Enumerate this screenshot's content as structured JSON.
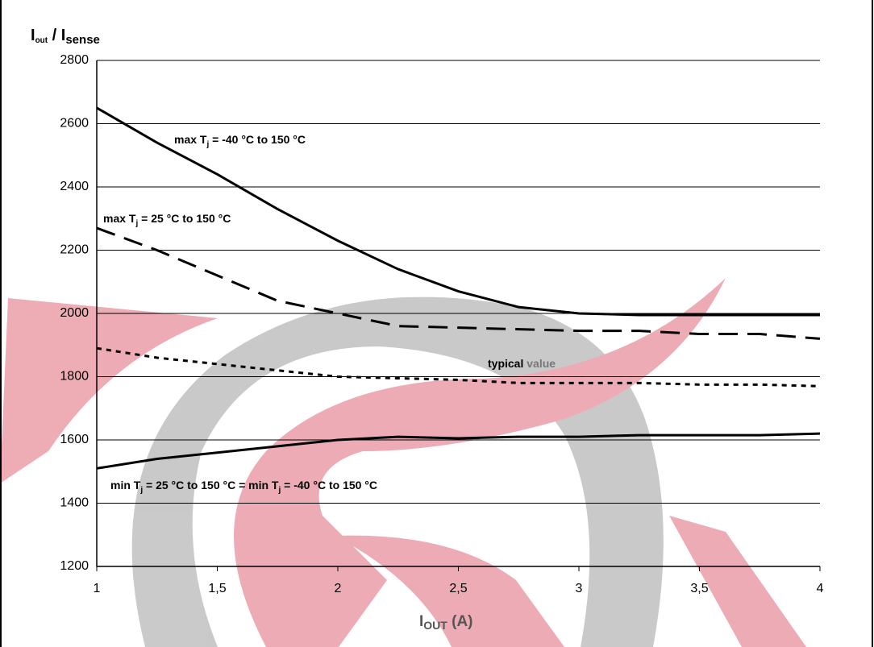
{
  "chart_data": {
    "type": "line",
    "y_label_parts": [
      "I",
      "out",
      " / I",
      "sense"
    ],
    "x_label_parts": [
      "I",
      "OUT",
      " (A)"
    ],
    "x": [
      1,
      1.25,
      1.5,
      1.75,
      2,
      2.25,
      2.5,
      2.75,
      3,
      3.25,
      3.5,
      3.75,
      4
    ],
    "series": [
      {
        "color": "#000000",
        "dash": "solid",
        "values": [
          2650,
          2540,
          2440,
          2330,
          2230,
          2140,
          2070,
          2020,
          2000,
          1995,
          1995,
          1995,
          1995
        ]
      },
      {
        "color": "#000000",
        "dash": "dashed",
        "values": [
          2270,
          2200,
          2120,
          2040,
          2000,
          1960,
          1955,
          1950,
          1945,
          1945,
          1935,
          1935,
          1920
        ]
      },
      {
        "color": "#000000",
        "dash": "dotted",
        "values": [
          1890,
          1860,
          1840,
          1820,
          1800,
          1795,
          1790,
          1780,
          1780,
          1780,
          1775,
          1775,
          1770
        ]
      },
      {
        "color": "#000000",
        "dash": "solid",
        "values": [
          1510,
          1540,
          1560,
          1580,
          1600,
          1610,
          1605,
          1610,
          1610,
          1615,
          1615,
          1615,
          1620
        ]
      }
    ],
    "annotations": [
      {
        "parts": [
          "max T",
          "j",
          " = -40 °C to 150 °C"
        ]
      },
      {
        "parts": [
          "max T",
          "j",
          " = 25 °C to 150 °C"
        ]
      },
      {
        "parts": [
          "typical",
          " value"
        ]
      },
      {
        "parts": [
          "min T",
          "j",
          " = 25 °C to 150 °C = ",
          "min T",
          "j",
          " = -40 °C to 150 °C"
        ]
      }
    ],
    "xlim": [
      1,
      4
    ],
    "ylim": [
      1200,
      2800
    ],
    "xticks": [
      1,
      {
        "value": 1.5,
        "label": "1,5"
      },
      2,
      {
        "value": 2.5,
        "label": "2,5"
      },
      3,
      {
        "value": 3.5,
        "label": "3,5"
      },
      4
    ],
    "yticks": [
      1200,
      1400,
      1600,
      1800,
      2000,
      2200,
      2400,
      2600,
      2800
    ],
    "grid": true
  }
}
